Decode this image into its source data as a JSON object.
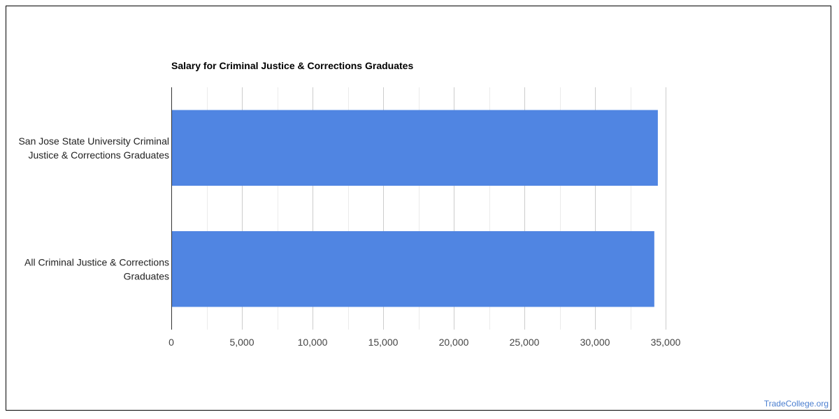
{
  "watermark": "TradeCollege.org",
  "chart_data": {
    "type": "bar",
    "orientation": "horizontal",
    "title": "Salary for Criminal Justice & Corrections Graduates",
    "categories": [
      [
        "San Jose State University Criminal",
        "Justice & Corrections Graduates"
      ],
      [
        "All Criminal Justice & Corrections",
        "Graduates"
      ]
    ],
    "values": [
      34450,
      34200
    ],
    "xlim": [
      0,
      35000
    ],
    "xticks": [
      0,
      5000,
      10000,
      15000,
      20000,
      25000,
      30000,
      35000
    ],
    "xtick_labels": [
      "0",
      "5,000",
      "10,000",
      "15,000",
      "20,000",
      "25,000",
      "30,000",
      "35,000"
    ],
    "grid": true,
    "bar_color": "#5085e2",
    "xlabel": "",
    "ylabel": ""
  }
}
